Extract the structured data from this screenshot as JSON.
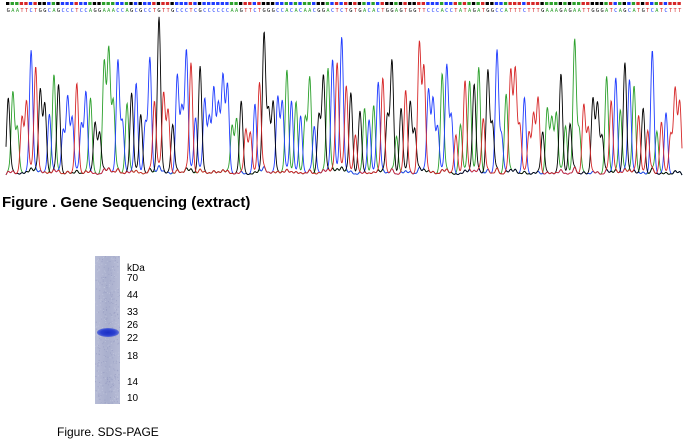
{
  "sequence": {
    "bases": "GAATTCTGGCAGCCCTCCAGGAAACCAGCGCCTGTTGCCCTCGCCCCCCAAGTTCTGGGCCACACAACGGACTCTGTGACACTGGAGTGGTTCCCACCTATAGATGGCCATTTCTTTGAAAGAGAATTGGGATCAGCATGTCATCTTT",
    "colors": {
      "A": "#2ca02c",
      "C": "#1f3cff",
      "G": "#000000",
      "T": "#d62728"
    },
    "title": "Figure . Gene Sequencing (extract)"
  },
  "gel": {
    "unit_label": "kDa",
    "markers": [
      "70",
      "44",
      "33",
      "26",
      "22",
      "18",
      "14",
      "10"
    ],
    "band_color": "#1b2fc4",
    "caption": "Figure. SDS-PAGE"
  }
}
